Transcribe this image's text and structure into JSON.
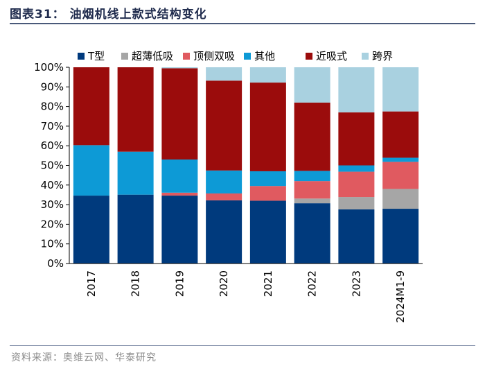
{
  "header": {
    "title": "图表31：  油烟机线上款式结构变化"
  },
  "footer": {
    "source": "资料来源：奥维云网、华泰研究"
  },
  "chart_data": {
    "type": "bar",
    "stacked": true,
    "categories": [
      "2017",
      "2018",
      "2019",
      "2020",
      "2021",
      "2022",
      "2023",
      "2024M1-9"
    ],
    "ylim": [
      0,
      100
    ],
    "yticks": [
      "0%",
      "10%",
      "20%",
      "30%",
      "40%",
      "50%",
      "60%",
      "70%",
      "80%",
      "90%",
      "100%"
    ],
    "legend_position": "top",
    "series": [
      {
        "name": "T型",
        "color": "#003a7d",
        "values": [
          34.6,
          35.1,
          34.6,
          32.2,
          32.0,
          30.7,
          27.6,
          27.9
        ]
      },
      {
        "name": "超薄低吸",
        "color": "#a6a6a6",
        "values": [
          0,
          0,
          0,
          0,
          0,
          2.4,
          6.3,
          10.1
        ]
      },
      {
        "name": "顶侧双吸",
        "color": "#e05a60",
        "values": [
          0,
          0,
          1.5,
          3.5,
          7.5,
          8.9,
          12.9,
          13.8
        ]
      },
      {
        "name": "其他",
        "color": "#0d9ad6",
        "values": [
          25.7,
          21.9,
          16.9,
          11.7,
          7.5,
          5.2,
          3.2,
          2.1
        ]
      },
      {
        "name": "近吸式",
        "color": "#9b0c0c",
        "values": [
          39.7,
          43.0,
          46.5,
          45.8,
          45.2,
          34.8,
          27.0,
          23.6
        ]
      },
      {
        "name": "跨界",
        "color": "#a9d1e0",
        "values": [
          0,
          0,
          0.5,
          6.8,
          7.8,
          18.0,
          23.0,
          22.5
        ]
      }
    ]
  }
}
